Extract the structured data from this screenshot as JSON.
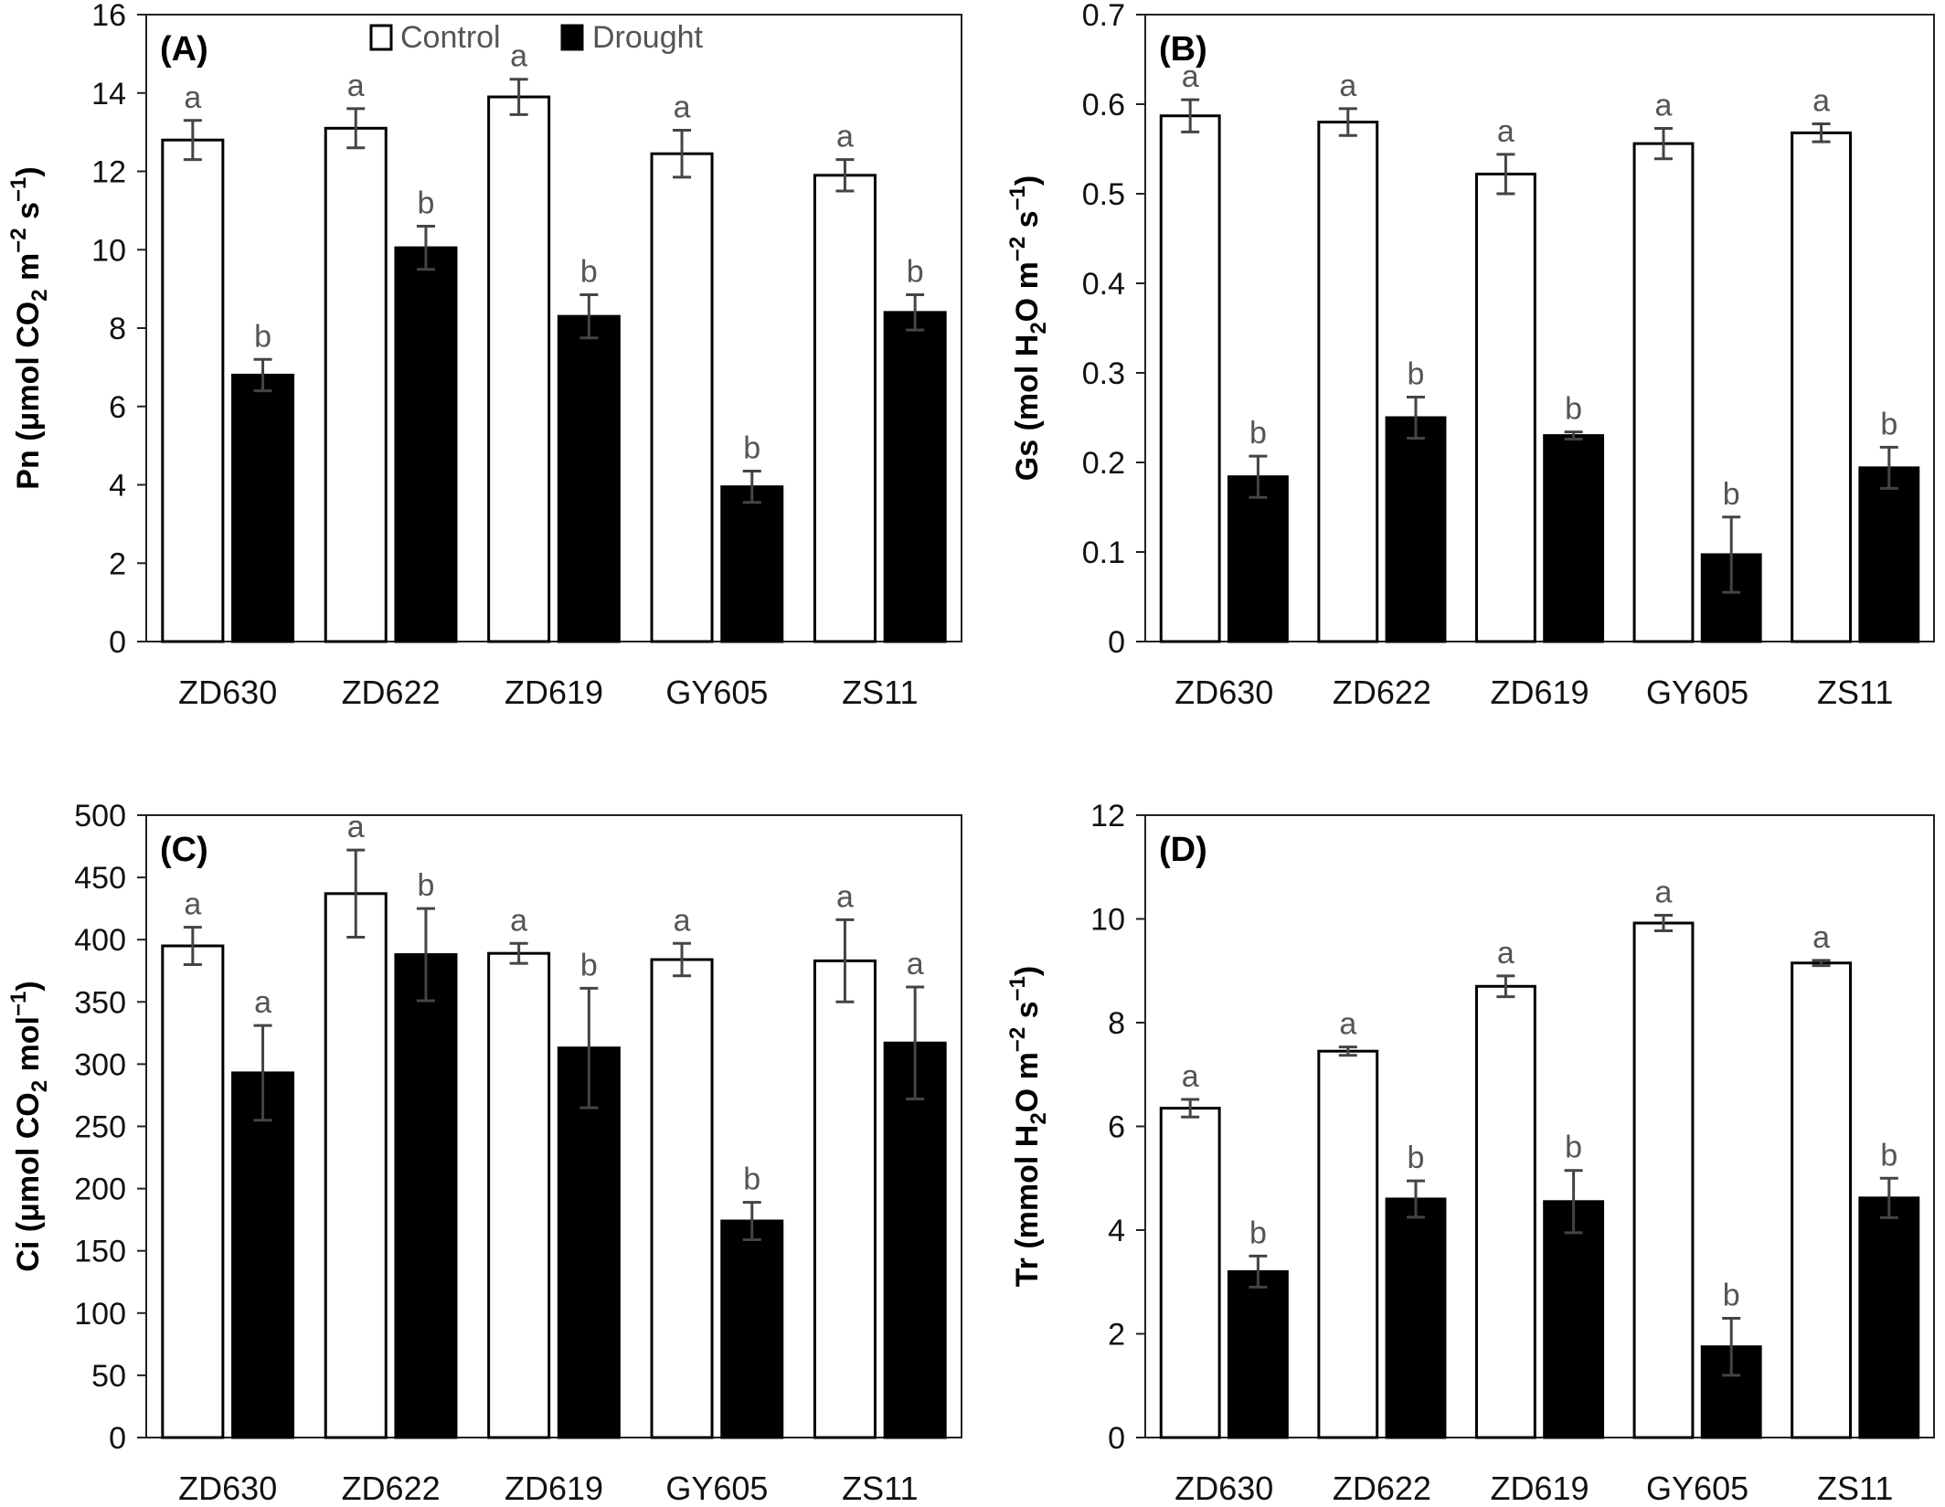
{
  "legend": {
    "series": [
      {
        "name": "Control",
        "fill": "#ffffff"
      },
      {
        "name": "Drought",
        "fill": "#000000"
      }
    ]
  },
  "chart_data": [
    {
      "panel": "(A)",
      "type": "bar",
      "ylabel_parts": [
        "Pn (μmol CO",
        "2",
        " m",
        "−2",
        " s",
        "−1",
        ")"
      ],
      "categories": [
        "ZD630",
        "ZD622",
        "ZD619",
        "GY605",
        "ZS11"
      ],
      "ylim": [
        0,
        16
      ],
      "yticks": [
        0,
        2,
        4,
        6,
        8,
        10,
        12,
        14,
        16
      ],
      "series": [
        {
          "name": "Control",
          "values": [
            12.8,
            13.1,
            13.9,
            12.45,
            11.9
          ],
          "errors": [
            0.5,
            0.5,
            0.45,
            0.6,
            0.4
          ],
          "sig": [
            "a",
            "a",
            "a",
            "a",
            "a"
          ]
        },
        {
          "name": "Drought",
          "values": [
            6.8,
            10.05,
            8.3,
            3.95,
            8.4
          ],
          "errors": [
            0.4,
            0.55,
            0.55,
            0.4,
            0.45
          ],
          "sig": [
            "b",
            "b",
            "b",
            "b",
            "b"
          ]
        }
      ]
    },
    {
      "panel": "(B)",
      "type": "bar",
      "ylabel_parts": [
        "Gs (mol H",
        "2",
        "O m",
        "−2",
        " s",
        "−1",
        ")"
      ],
      "categories": [
        "ZD630",
        "ZD622",
        "ZD619",
        "GY605",
        "ZS11"
      ],
      "ylim": [
        0,
        0.7
      ],
      "yticks": [
        0,
        0.1,
        0.2,
        0.3,
        0.4,
        0.5,
        0.6,
        0.7
      ],
      "series": [
        {
          "name": "Control",
          "values": [
            0.587,
            0.58,
            0.522,
            0.556,
            0.568
          ],
          "errors": [
            0.018,
            0.015,
            0.022,
            0.017,
            0.01
          ],
          "sig": [
            "a",
            "a",
            "a",
            "a",
            "a"
          ]
        },
        {
          "name": "Drought",
          "values": [
            0.184,
            0.25,
            0.23,
            0.097,
            0.194
          ],
          "errors": [
            0.023,
            0.023,
            0.004,
            0.042,
            0.023
          ],
          "sig": [
            "b",
            "b",
            "b",
            "b",
            "b"
          ]
        }
      ]
    },
    {
      "panel": "(C)",
      "type": "bar",
      "ylabel_parts": [
        "Ci (μmol CO",
        "2",
        " mol",
        "−1",
        ")"
      ],
      "categories": [
        "ZD630",
        "ZD622",
        "ZD619",
        "GY605",
        "ZS11"
      ],
      "ylim": [
        0,
        500
      ],
      "yticks": [
        0,
        50,
        100,
        150,
        200,
        250,
        300,
        350,
        400,
        450,
        500
      ],
      "series": [
        {
          "name": "Control",
          "values": [
            395,
            437,
            389,
            384,
            383
          ],
          "errors": [
            15,
            35,
            8,
            13,
            33
          ],
          "sig": [
            "a",
            "a",
            "a",
            "a",
            "a"
          ]
        },
        {
          "name": "Drought",
          "values": [
            293,
            388,
            313,
            174,
            317
          ],
          "errors": [
            38,
            37,
            48,
            15,
            45
          ],
          "sig": [
            "a",
            "b",
            "b",
            "b",
            "a"
          ]
        }
      ]
    },
    {
      "panel": "(D)",
      "type": "bar",
      "ylabel_parts": [
        "Tr (mmol H",
        "2",
        "O m",
        "−2",
        " s",
        "−1",
        ")"
      ],
      "categories": [
        "ZD630",
        "ZD622",
        "ZD619",
        "GY605",
        "ZS11"
      ],
      "ylim": [
        0,
        12
      ],
      "yticks": [
        0,
        2,
        4,
        6,
        8,
        10,
        12
      ],
      "series": [
        {
          "name": "Control",
          "values": [
            6.35,
            7.45,
            8.7,
            9.92,
            9.15
          ],
          "errors": [
            0.17,
            0.08,
            0.2,
            0.15,
            0.05
          ],
          "sig": [
            "a",
            "a",
            "a",
            "a",
            "a"
          ]
        },
        {
          "name": "Drought",
          "values": [
            3.2,
            4.6,
            4.55,
            1.75,
            4.62
          ],
          "errors": [
            0.3,
            0.35,
            0.6,
            0.55,
            0.38
          ],
          "sig": [
            "b",
            "b",
            "b",
            "b",
            "b"
          ]
        }
      ]
    }
  ]
}
